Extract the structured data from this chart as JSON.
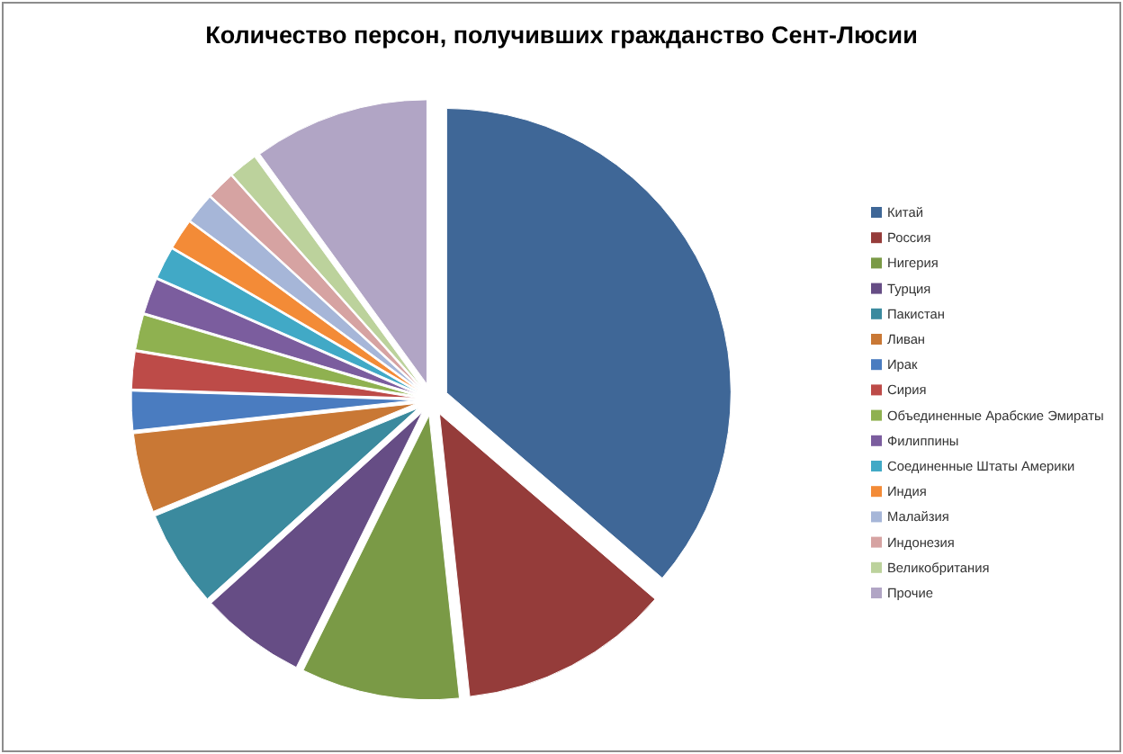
{
  "chart_data": {
    "type": "pie",
    "title": "Количество персон, получивших гражданство Сент-Люсии",
    "categories": [
      "Китай",
      "Россия",
      "Нигерия",
      "Турция",
      "Пакистан",
      "Ливан",
      "Ирак",
      "Сирия",
      "Объединенные Арабские Эмираты",
      "Филиппины",
      "Соединенные Штаты Америки",
      "Индия",
      "Малайзия",
      "Индонезия",
      "Великобритания",
      "Прочие"
    ],
    "values": [
      36.3,
      12,
      9,
      6,
      5.5,
      4.5,
      2.2,
      2.1,
      2,
      2,
      1.8,
      1.7,
      1.7,
      1.6,
      1.6,
      10
    ],
    "colors": [
      "#3f6797",
      "#953c3a",
      "#7a9a46",
      "#664d85",
      "#3b8a9e",
      "#c97835",
      "#4a7cc0",
      "#bd4b48",
      "#8fb150",
      "#7b5d9e",
      "#41a9c6",
      "#f38b37",
      "#a6b6d8",
      "#d6a3a2",
      "#bcd29c",
      "#b1a5c5"
    ],
    "legend": "right"
  }
}
